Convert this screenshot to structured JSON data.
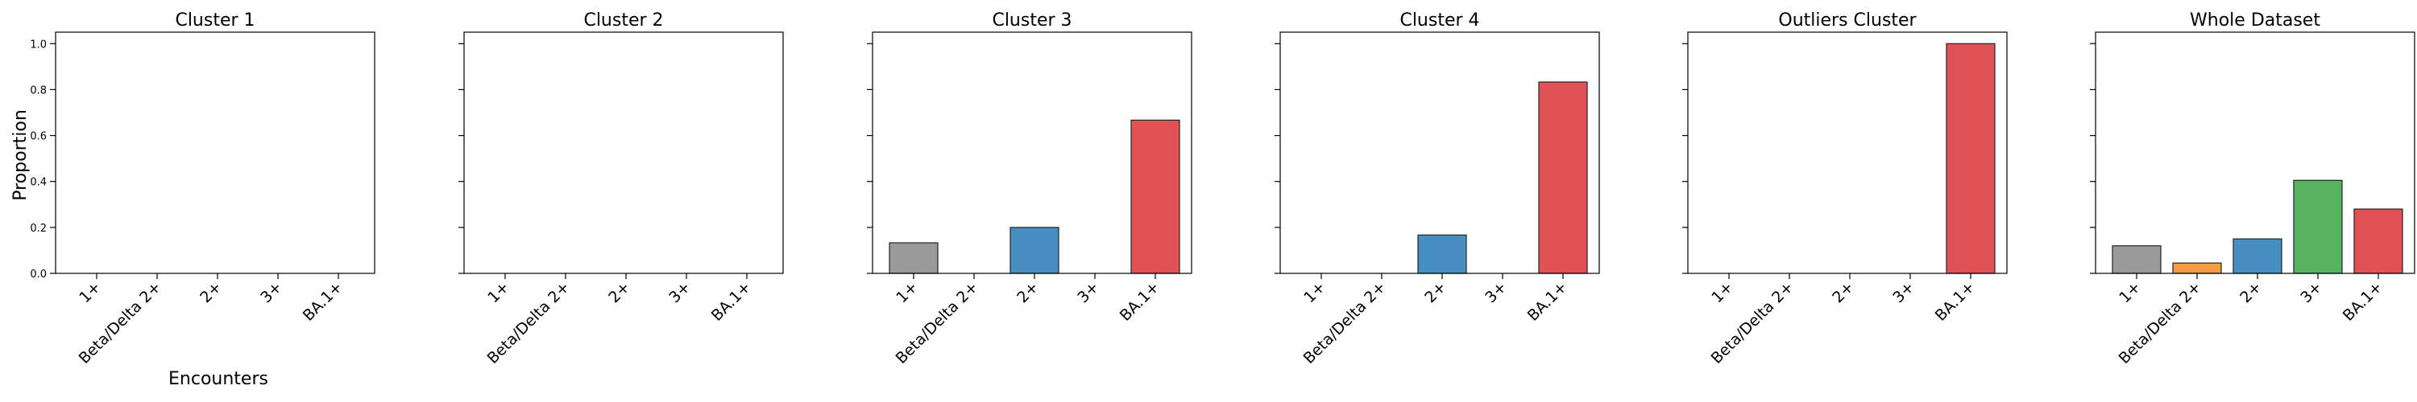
{
  "figure": {
    "ylabel": "Proportion",
    "xlabel": "Encounters",
    "yticks": [
      "0.0",
      "0.2",
      "0.4",
      "0.6",
      "0.8",
      "1.0"
    ]
  },
  "colors": {
    "1+": "#8c8c8c",
    "Beta/Delta 2+": "#f28e2b",
    "2+": "#2f7fb8",
    "3+": "#3fa84a",
    "BA.1+": "#dd3a40"
  },
  "chart_data": [
    {
      "type": "bar",
      "title": "Cluster 1",
      "categories": [
        "1+",
        "Beta/Delta 2+",
        "2+",
        "3+",
        "BA.1+"
      ],
      "values": [
        0.0,
        0.0,
        0.0,
        0.0,
        0.0
      ],
      "xlabel": "Encounters",
      "ylabel": "Proportion",
      "ylim": [
        0,
        1.05
      ]
    },
    {
      "type": "bar",
      "title": "Cluster 2",
      "categories": [
        "1+",
        "Beta/Delta 2+",
        "2+",
        "3+",
        "BA.1+"
      ],
      "values": [
        0.0,
        0.0,
        0.0,
        0.0,
        0.0
      ],
      "xlabel": "",
      "ylabel": "",
      "ylim": [
        0,
        1.05
      ]
    },
    {
      "type": "bar",
      "title": "Cluster 3",
      "categories": [
        "1+",
        "Beta/Delta 2+",
        "2+",
        "3+",
        "BA.1+"
      ],
      "values": [
        0.133,
        0.0,
        0.2,
        0.0,
        0.667
      ],
      "xlabel": "",
      "ylabel": "",
      "ylim": [
        0,
        1.05
      ]
    },
    {
      "type": "bar",
      "title": "Cluster 4",
      "categories": [
        "1+",
        "Beta/Delta 2+",
        "2+",
        "3+",
        "BA.1+"
      ],
      "values": [
        0.0,
        0.0,
        0.167,
        0.0,
        0.833
      ],
      "xlabel": "",
      "ylabel": "",
      "ylim": [
        0,
        1.05
      ]
    },
    {
      "type": "bar",
      "title": "Outliers Cluster",
      "categories": [
        "1+",
        "Beta/Delta 2+",
        "2+",
        "3+",
        "BA.1+"
      ],
      "values": [
        0.0,
        0.0,
        0.0,
        0.0,
        1.0
      ],
      "xlabel": "",
      "ylabel": "",
      "ylim": [
        0,
        1.05
      ]
    },
    {
      "type": "bar",
      "title": "Whole Dataset",
      "categories": [
        "1+",
        "Beta/Delta 2+",
        "2+",
        "3+",
        "BA.1+"
      ],
      "values": [
        0.12,
        0.045,
        0.15,
        0.405,
        0.28
      ],
      "xlabel": "",
      "ylabel": "",
      "ylim": [
        0,
        1.05
      ]
    }
  ]
}
